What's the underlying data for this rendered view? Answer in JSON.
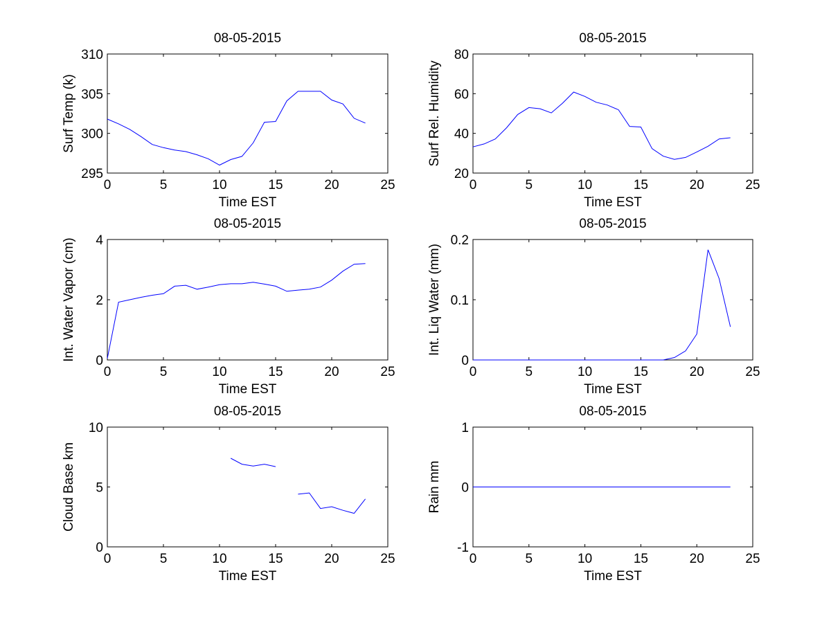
{
  "chart_data": [
    {
      "type": "line",
      "title": "08-05-2015",
      "xlabel": "Time EST",
      "ylabel": "Surf Temp (k)",
      "xlim": [
        0,
        25
      ],
      "ylim": [
        295,
        310
      ],
      "xticks": [
        0,
        5,
        10,
        15,
        20,
        25
      ],
      "yticks": [
        295,
        300,
        305,
        310
      ],
      "ytick_labels": [
        "295",
        "300",
        "305",
        "310"
      ],
      "series": [
        {
          "name": "Surf Temp",
          "color": "#0000ff",
          "segments": [
            [
              [
                0,
                301.8
              ],
              [
                1,
                301.2
              ],
              [
                2,
                300.5
              ],
              [
                3,
                299.6
              ],
              [
                4,
                298.6
              ],
              [
                5,
                298.2
              ],
              [
                6,
                297.9
              ],
              [
                7,
                297.7
              ],
              [
                8,
                297.3
              ],
              [
                9,
                296.8
              ],
              [
                10,
                296.0
              ],
              [
                11,
                296.7
              ],
              [
                12,
                297.1
              ],
              [
                13,
                298.8
              ],
              [
                14,
                301.4
              ],
              [
                15,
                301.5
              ],
              [
                16,
                304.1
              ],
              [
                17,
                305.3
              ],
              [
                18,
                305.3
              ],
              [
                19,
                305.3
              ],
              [
                20,
                304.2
              ],
              [
                21,
                303.7
              ],
              [
                22,
                301.9
              ],
              [
                23,
                301.3
              ]
            ]
          ]
        }
      ]
    },
    {
      "type": "line",
      "title": "08-05-2015",
      "xlabel": "Time EST",
      "ylabel": "Surf Rel. Humidity",
      "xlim": [
        0,
        25
      ],
      "ylim": [
        20,
        80
      ],
      "xticks": [
        0,
        5,
        10,
        15,
        20,
        25
      ],
      "yticks": [
        20,
        40,
        60,
        80
      ],
      "ytick_labels": [
        "20",
        "40",
        "60",
        "80"
      ],
      "series": [
        {
          "name": "Surf Rel. Humidity",
          "color": "#0000ff",
          "segments": [
            [
              [
                0,
                33.2
              ],
              [
                1,
                34.7
              ],
              [
                2,
                37.2
              ],
              [
                3,
                42.8
              ],
              [
                4,
                49.5
              ],
              [
                5,
                53.0
              ],
              [
                6,
                52.4
              ],
              [
                7,
                50.3
              ],
              [
                8,
                55.2
              ],
              [
                9,
                60.8
              ],
              [
                10,
                58.6
              ],
              [
                11,
                55.7
              ],
              [
                12,
                54.3
              ],
              [
                13,
                51.9
              ],
              [
                14,
                43.5
              ],
              [
                15,
                43.2
              ],
              [
                16,
                32.3
              ],
              [
                17,
                28.5
              ],
              [
                18,
                26.9
              ],
              [
                19,
                27.9
              ],
              [
                20,
                30.6
              ],
              [
                21,
                33.5
              ],
              [
                22,
                37.2
              ],
              [
                23,
                37.8
              ]
            ]
          ]
        }
      ]
    },
    {
      "type": "line",
      "title": "08-05-2015",
      "xlabel": "Time EST",
      "ylabel": "Int. Water Vapor (cm)",
      "xlim": [
        0,
        25
      ],
      "ylim": [
        0,
        4
      ],
      "xticks": [
        0,
        5,
        10,
        15,
        20,
        25
      ],
      "yticks": [
        0,
        2,
        4
      ],
      "ytick_labels": [
        "0",
        "2",
        "4"
      ],
      "series": [
        {
          "name": "Int. Water Vapor",
          "color": "#0000ff",
          "segments": [
            [
              [
                0,
                0.05
              ],
              [
                1,
                1.92
              ],
              [
                2,
                2.0
              ],
              [
                3,
                2.08
              ],
              [
                4,
                2.15
              ],
              [
                5,
                2.2
              ],
              [
                6,
                2.45
              ],
              [
                7,
                2.48
              ],
              [
                8,
                2.35
              ],
              [
                9,
                2.42
              ],
              [
                10,
                2.5
              ],
              [
                11,
                2.53
              ],
              [
                12,
                2.53
              ],
              [
                13,
                2.58
              ],
              [
                14,
                2.52
              ],
              [
                15,
                2.45
              ],
              [
                16,
                2.28
              ],
              [
                17,
                2.32
              ],
              [
                18,
                2.35
              ],
              [
                19,
                2.42
              ],
              [
                20,
                2.65
              ],
              [
                21,
                2.95
              ],
              [
                22,
                3.18
              ],
              [
                23,
                3.2
              ]
            ]
          ]
        }
      ]
    },
    {
      "type": "line",
      "title": "08-05-2015",
      "xlabel": "Time EST",
      "ylabel": "Int. Liq Water (mm)",
      "xlim": [
        0,
        25
      ],
      "ylim": [
        0,
        0.2
      ],
      "xticks": [
        0,
        5,
        10,
        15,
        20,
        25
      ],
      "yticks": [
        0,
        0.1,
        0.2
      ],
      "ytick_labels": [
        "0",
        "0.1",
        "0.2"
      ],
      "series": [
        {
          "name": "Int. Liq Water",
          "color": "#0000ff",
          "segments": [
            [
              [
                0,
                0
              ],
              [
                1,
                0
              ],
              [
                2,
                0
              ],
              [
                3,
                0
              ],
              [
                4,
                0
              ],
              [
                5,
                0
              ],
              [
                6,
                0
              ],
              [
                7,
                0
              ],
              [
                8,
                0
              ],
              [
                9,
                0
              ],
              [
                10,
                0
              ],
              [
                11,
                0
              ],
              [
                12,
                0
              ],
              [
                13,
                0
              ],
              [
                14,
                0
              ],
              [
                15,
                0
              ],
              [
                16,
                0
              ],
              [
                17,
                0
              ],
              [
                18,
                0.004
              ],
              [
                19,
                0.015
              ],
              [
                20,
                0.043
              ],
              [
                21,
                0.183
              ],
              [
                22,
                0.135
              ],
              [
                23,
                0.055
              ]
            ]
          ]
        }
      ]
    },
    {
      "type": "line",
      "title": "08-05-2015",
      "xlabel": "Time EST",
      "ylabel": "Cloud Base km",
      "xlim": [
        0,
        25
      ],
      "ylim": [
        0,
        10
      ],
      "xticks": [
        0,
        5,
        10,
        15,
        20,
        25
      ],
      "yticks": [
        0,
        5,
        10
      ],
      "ytick_labels": [
        "0",
        "5",
        "10"
      ],
      "series": [
        {
          "name": "Cloud Base",
          "color": "#0000ff",
          "segments": [
            [
              [
                11,
                7.4
              ],
              [
                12,
                6.9
              ],
              [
                13,
                6.75
              ],
              [
                14,
                6.9
              ],
              [
                15,
                6.7
              ]
            ],
            [
              [
                17,
                4.4
              ],
              [
                18,
                4.5
              ],
              [
                19,
                3.2
              ],
              [
                20,
                3.35
              ],
              [
                21,
                3.05
              ],
              [
                22,
                2.8
              ],
              [
                23,
                4.0
              ]
            ]
          ]
        }
      ]
    },
    {
      "type": "line",
      "title": "08-05-2015",
      "xlabel": "Time EST",
      "ylabel": "Rain mm",
      "xlim": [
        0,
        25
      ],
      "ylim": [
        -1,
        1
      ],
      "xticks": [
        0,
        5,
        10,
        15,
        20,
        25
      ],
      "yticks": [
        -1,
        0,
        1
      ],
      "ytick_labels": [
        "-1",
        "0",
        "1"
      ],
      "series": [
        {
          "name": "Rain",
          "color": "#0000ff",
          "segments": [
            [
              [
                0,
                0
              ],
              [
                23,
                0
              ]
            ]
          ]
        }
      ]
    }
  ]
}
